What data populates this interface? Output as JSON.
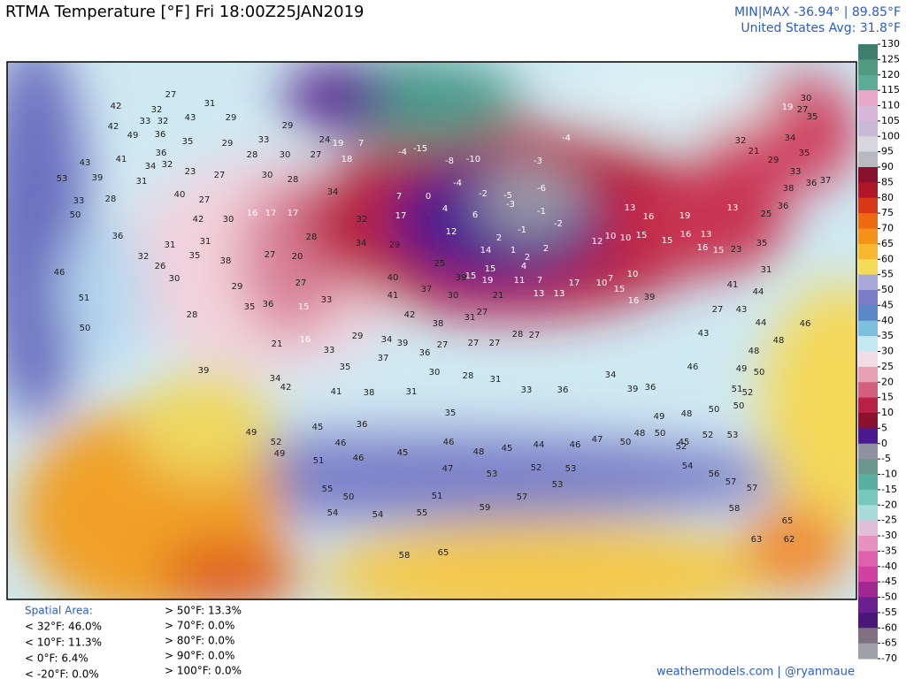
{
  "header": {
    "title": "RTMA Temperature [°F]  Fri 18:00Z25JAN2019",
    "minmax": "MIN|MAX -36.94° | 89.85°F",
    "avg": "United States Avg: 31.8°F"
  },
  "colorbar": {
    "ticks": [
      130,
      125,
      120,
      115,
      110,
      105,
      100,
      95,
      90,
      85,
      80,
      75,
      70,
      65,
      60,
      55,
      50,
      45,
      40,
      35,
      30,
      25,
      20,
      15,
      10,
      5,
      0,
      -5,
      -10,
      -15,
      -20,
      -25,
      -30,
      -35,
      -40,
      -45,
      -50,
      -55,
      -60,
      -65,
      -70
    ],
    "colors": [
      "#3f7d6e",
      "#4f9a80",
      "#5bab96",
      "#e9a8c8",
      "#d8b6dc",
      "#c8b8d8",
      "#d6d6dc",
      "#b8b8c0",
      "#8a1030",
      "#b0182a",
      "#d83818",
      "#ee6a10",
      "#f59018",
      "#f7b830",
      "#f4dc58",
      "#a8a8d8",
      "#7a7cc8",
      "#5a88c8",
      "#7cc0e0",
      "#c4e8f2",
      "#f2dce6",
      "#e8a0b4",
      "#d46080",
      "#b82048",
      "#8c1030",
      "#4a1890",
      "#9090a0",
      "#6a9890",
      "#5ab0a0",
      "#78c8bc",
      "#a8dcd8",
      "#e0c0d8",
      "#e890c0",
      "#e060b0",
      "#d040a0",
      "#a02890",
      "#6a2090",
      "#4a1878",
      "#807080",
      "#a0a0a8"
    ]
  },
  "stats": {
    "title": "Spatial Area:",
    "below": [
      "< 32°F: 46.0%",
      "< 10°F: 11.3%",
      "< 0°F: 6.4%",
      "< -20°F: 0.0%"
    ],
    "above": [
      "> 50°F: 13.3%",
      "> 70°F: 0.0%",
      "> 80°F: 0.0%",
      "> 90°F: 0.0%",
      "> 100°F: 0.0%"
    ]
  },
  "credit": "weathermodels.com | @ryanmaue",
  "stations": [
    27,
    42,
    32,
    31,
    33,
    32,
    43,
    29,
    29,
    42,
    49,
    36,
    35,
    29,
    33,
    24,
    19,
    7,
    41,
    36,
    43,
    34,
    32,
    23,
    27,
    28,
    30,
    27,
    18,
    53,
    39,
    31,
    30,
    28,
    34,
    33,
    28,
    40,
    27,
    17,
    17,
    32,
    17,
    50,
    42,
    30,
    16,
    36,
    31,
    31,
    28,
    34,
    29,
    32,
    26,
    35,
    38,
    27,
    20,
    25,
    46,
    30,
    29,
    27,
    40,
    37,
    39,
    51,
    28,
    35,
    36,
    33,
    15,
    41,
    42,
    38,
    31,
    27,
    50,
    29,
    34,
    39,
    36,
    27,
    27,
    27,
    28,
    27,
    21,
    16,
    33,
    35,
    37,
    39,
    34,
    42,
    41,
    38,
    31,
    30,
    28,
    31,
    33,
    36,
    34,
    39,
    36,
    35,
    36,
    45,
    49,
    52,
    49,
    46,
    51,
    46,
    45,
    46,
    48,
    45,
    44,
    46,
    47,
    50,
    48,
    49,
    45,
    55,
    50,
    54,
    54,
    55,
    51,
    47,
    53,
    52,
    53,
    53,
    57,
    59,
    65,
    58,
    -3,
    -4,
    -15,
    -4,
    -8,
    -10,
    -4,
    -2,
    -5,
    -6,
    -3,
    -1,
    -2,
    -1,
    6,
    4,
    2,
    2,
    2,
    4,
    14,
    1,
    7,
    0,
    12,
    15,
    11,
    7,
    13,
    13,
    15,
    19,
    21,
    30,
    17,
    10,
    7,
    10,
    15,
    16,
    39,
    12,
    10,
    10,
    15,
    15,
    16,
    13,
    16,
    15,
    23,
    13,
    16,
    19,
    13,
    25,
    36,
    35,
    31,
    41,
    44,
    43,
    27,
    43,
    48,
    48,
    46,
    44,
    46,
    49,
    50,
    51,
    52,
    50,
    50,
    48,
    50,
    52,
    52,
    53,
    54,
    56,
    57,
    57,
    58,
    63,
    65,
    62,
    33,
    38,
    36,
    37,
    19,
    30,
    27,
    35,
    32,
    21,
    29,
    34,
    35
  ]
}
